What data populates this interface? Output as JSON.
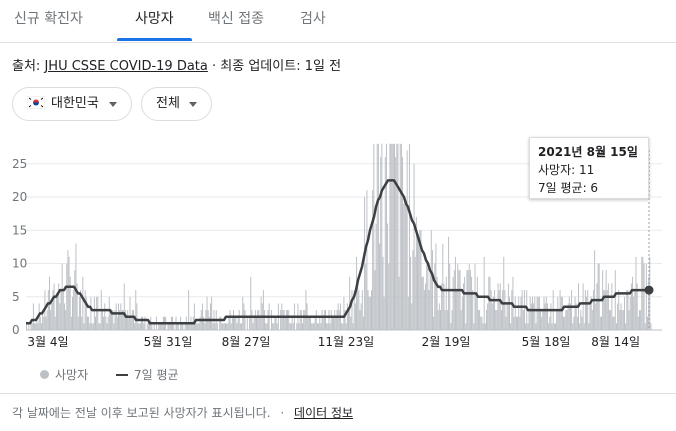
{
  "tabs": [
    {
      "label": "신규 확진자"
    },
    {
      "label": "사망자"
    },
    {
      "label": "백신 접종"
    },
    {
      "label": "검사"
    }
  ],
  "source": {
    "prefix": "출처:",
    "link": "JHU CSSE COVID-19 Data",
    "separator": "·",
    "updated": "최종 업데이트: 1일 전"
  },
  "filters": {
    "country": "대한민국",
    "region": "전체"
  },
  "tooltip": {
    "date": "2021년 8월 15일",
    "deaths": "사망자: 11",
    "avg": "7일 평균: 6"
  },
  "legend": {
    "bars": "사망자",
    "line": "7일 평균"
  },
  "footnote": {
    "text": "각 날짜에는 전날 이후 보고된 사망자가 표시됩니다.",
    "separator": "·",
    "link": "데이터 정보"
  },
  "colors": {
    "bars": "#bdc1c6",
    "line": "#3c4043",
    "accent": "#1a73e8"
  },
  "chart_data": {
    "type": "bar",
    "title": "",
    "xlabel": "",
    "ylabel": "",
    "ylim": [
      0,
      28
    ],
    "yticks": [
      "0",
      "5",
      "10",
      "15",
      "20",
      "25"
    ],
    "xticks": [
      "3월 4일",
      "5월 31일",
      "8월 27일",
      "11월 23일",
      "2월 19일",
      "5월 18일",
      "8월 14일"
    ],
    "grid": true,
    "series": [
      {
        "name": "사망자",
        "kind": "bar",
        "note": "daily deaths, one bar per day"
      },
      {
        "name": "7일 평균",
        "kind": "line"
      }
    ],
    "avg_keypoints": [
      {
        "x": "3월 4일",
        "y": 1
      },
      {
        "x": "4월 1일",
        "y": 6.5
      },
      {
        "x": "4월 15일",
        "y": 3
      },
      {
        "x": "5월 31일",
        "y": 1
      },
      {
        "x": "8월 27일",
        "y": 2
      },
      {
        "x": "11월 23일",
        "y": 2
      },
      {
        "x": "12월 28일",
        "y": 22.5
      },
      {
        "x": "2월 19일",
        "y": 6
      },
      {
        "x": "5월 18일",
        "y": 3
      },
      {
        "x": "8월 14일",
        "y": 6
      }
    ]
  }
}
